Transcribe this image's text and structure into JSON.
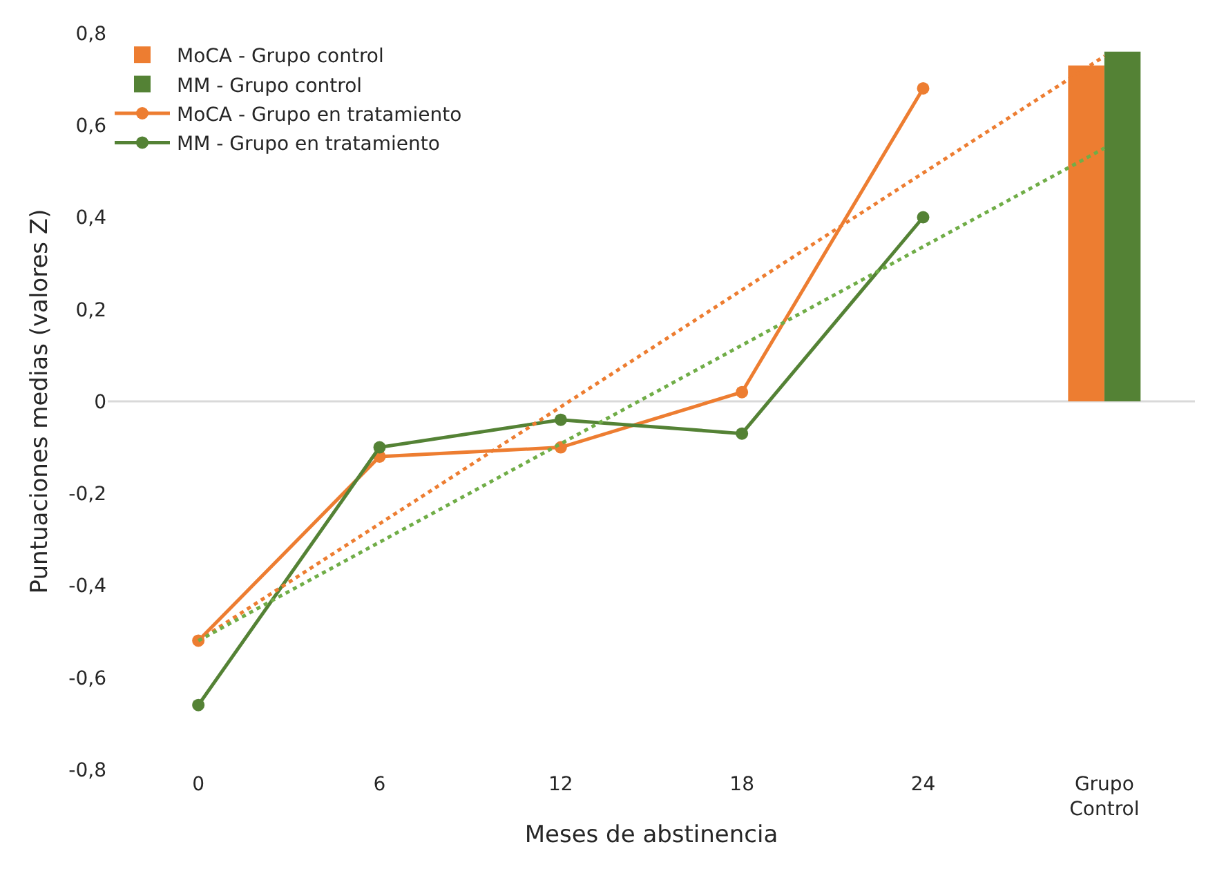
{
  "chart_data": {
    "type": "line",
    "xlabel": "Meses de abstinencia",
    "ylabel": "Puntuaciones medias (valores Z)",
    "xlim": [
      -3,
      33
    ],
    "xticks": [
      0,
      6,
      12,
      18,
      24,
      {
        "value": 30,
        "label": "Grupo Control"
      }
    ],
    "ylim": [
      -0.8,
      0.8
    ],
    "yticks": [
      {
        "value": -0.8,
        "label": "-0,8"
      },
      {
        "value": -0.6,
        "label": "-0,6"
      },
      {
        "value": -0.4,
        "label": "-0,4"
      },
      {
        "value": -0.2,
        "label": "-0,2"
      },
      0,
      {
        "value": 0.2,
        "label": "0,2"
      },
      {
        "value": 0.4,
        "label": "0,4"
      },
      {
        "value": 0.6,
        "label": "0,6"
      },
      {
        "value": 0.8,
        "label": "0,8"
      }
    ],
    "grid": false,
    "legend": "top left",
    "marker": "circle",
    "line_style": "solid",
    "ref_lines": [
      {
        "axis": "y",
        "value": 0,
        "color": "#d9d9d9"
      }
    ],
    "series": [
      {
        "name": "MoCA - Grupo control",
        "type": "bar",
        "color": "#ed7d31",
        "x": [
          30
        ],
        "values": [
          0.73
        ]
      },
      {
        "name": "MM - Grupo control",
        "type": "bar",
        "color": "#548235",
        "x": [
          30
        ],
        "values": [
          0.76
        ]
      },
      {
        "name": "MoCA - Grupo en tratamiento",
        "color": "#ed7d31",
        "x": [
          0,
          6,
          12,
          18,
          24
        ],
        "values": [
          -0.52,
          -0.12,
          -0.1,
          0.02,
          0.68
        ]
      },
      {
        "name": "MM - Grupo en tratamiento",
        "color": "#548235",
        "x": [
          0,
          6,
          12,
          18,
          24
        ],
        "values": [
          -0.66,
          -0.1,
          -0.04,
          -0.07,
          0.4
        ]
      },
      {
        "color": "#ed7d31",
        "x": [
          0,
          30
        ],
        "values": [
          -0.52,
          0.75
        ],
        "marker": "none",
        "line_style": "dotted"
      },
      {
        "color": "#70ad47",
        "x": [
          0,
          30
        ],
        "values": [
          -0.52,
          0.55
        ],
        "marker": "none",
        "line_style": "dotted"
      }
    ]
  }
}
